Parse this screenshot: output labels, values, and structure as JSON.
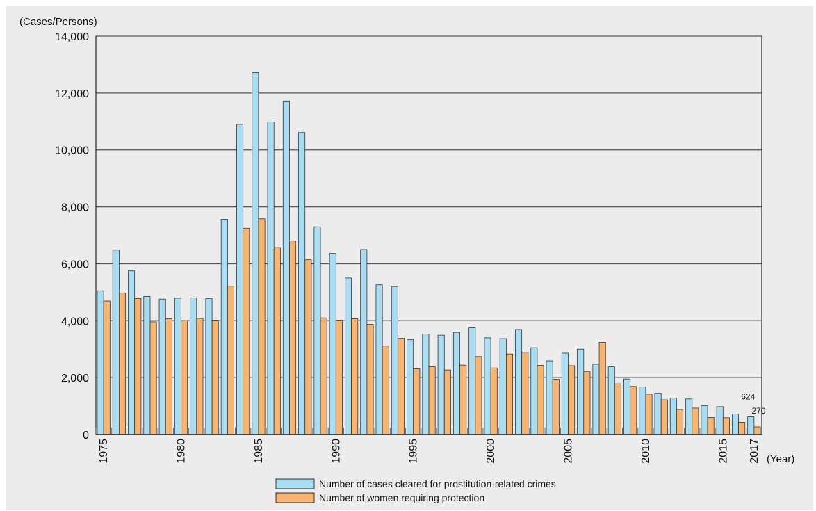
{
  "chart_data": {
    "type": "bar",
    "yunit": "(Cases/Persons)",
    "xunit": "(Year)",
    "ylim": [
      0,
      14000
    ],
    "yticks": [
      0,
      2000,
      4000,
      6000,
      8000,
      10000,
      12000,
      14000
    ],
    "ytick_labels": [
      "0",
      "2,000",
      "4,000",
      "6,000",
      "8,000",
      "10,000",
      "12,000",
      "14,000"
    ],
    "categories": [
      1975,
      1976,
      1977,
      1978,
      1979,
      1980,
      1981,
      1982,
      1983,
      1984,
      1985,
      1986,
      1987,
      1988,
      1989,
      1990,
      1991,
      1992,
      1993,
      1994,
      1995,
      1996,
      1997,
      1998,
      1999,
      2000,
      2001,
      2002,
      2003,
      2004,
      2005,
      2006,
      2007,
      2008,
      2009,
      2010,
      2011,
      2012,
      2013,
      2014,
      2015,
      2016,
      2017
    ],
    "xtick_labels": [
      "1975",
      "1980",
      "1985",
      "1990",
      "1995",
      "2000",
      "2005",
      "2010",
      "2015",
      "2017"
    ],
    "grid": true,
    "legend_position": "bottom",
    "series": [
      {
        "name": "Number of cases cleared for prostitution-related crimes",
        "color": "#a8def4",
        "values": [
          5050,
          6480,
          5750,
          4850,
          4760,
          4790,
          4800,
          4780,
          7560,
          10900,
          12720,
          10980,
          11720,
          10610,
          7300,
          6360,
          5500,
          6500,
          5260,
          5200,
          3340,
          3530,
          3490,
          3590,
          3750,
          3400,
          3370,
          3690,
          3050,
          2590,
          2860,
          3000,
          2470,
          2380,
          1950,
          1670,
          1450,
          1280,
          1250,
          1010,
          980,
          720,
          624
        ]
      },
      {
        "name": "Number of women requiring protection",
        "color": "#f9b56f",
        "values": [
          4690,
          4970,
          4780,
          3960,
          4070,
          4000,
          4080,
          4020,
          5210,
          7250,
          7580,
          6570,
          6800,
          6150,
          4100,
          4020,
          4070,
          3870,
          3110,
          3380,
          2310,
          2380,
          2270,
          2440,
          2740,
          2340,
          2830,
          2890,
          2430,
          1940,
          2420,
          2220,
          3240,
          1780,
          1690,
          1420,
          1220,
          880,
          930,
          600,
          590,
          430,
          270
        ]
      }
    ],
    "annotations": [
      {
        "text": "624",
        "year": 2017,
        "series": 0
      },
      {
        "text": "270",
        "year": 2017,
        "series": 1
      }
    ]
  }
}
